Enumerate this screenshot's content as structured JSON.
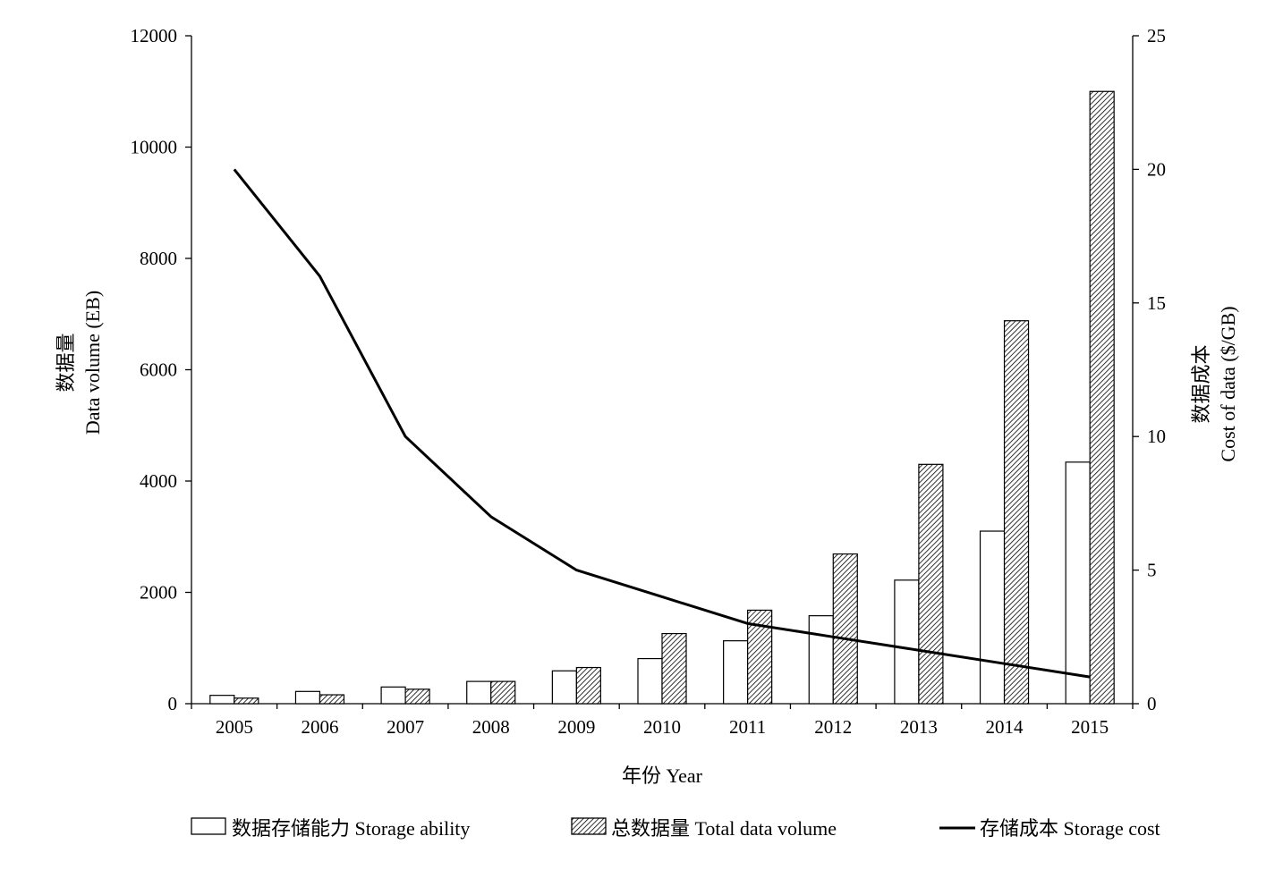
{
  "chart_data": {
    "type": "bar",
    "categories": [
      "2005",
      "2006",
      "2007",
      "2008",
      "2009",
      "2010",
      "2011",
      "2012",
      "2013",
      "2014",
      "2015"
    ],
    "series": [
      {
        "name": "数据存储能力 Storage ability",
        "type": "bar",
        "axis": "left",
        "fill": "#ffffff",
        "values": [
          150,
          220,
          300,
          400,
          590,
          810,
          1130,
          1580,
          2220,
          3100,
          4340
        ]
      },
      {
        "name": "总数据量 Total data volume",
        "type": "bar",
        "axis": "left",
        "fill": "hatched",
        "values": [
          100,
          160,
          260,
          400,
          650,
          1260,
          1680,
          2690,
          4300,
          6880,
          11000
        ]
      },
      {
        "name": "存储成本 Storage cost",
        "type": "line",
        "axis": "right",
        "color": "#000000",
        "values": [
          20,
          16,
          10,
          7,
          5,
          4,
          3,
          2.5,
          2,
          1.5,
          1
        ]
      }
    ],
    "xlabel": "年份  Year",
    "ylabel": [
      "数据量",
      "Data volume (EB)"
    ],
    "y2label": [
      "数据成本",
      "Cost of data ($/GB)"
    ],
    "ylim": [
      0,
      12000
    ],
    "y2lim": [
      0,
      25
    ],
    "yticks": [
      0,
      2000,
      4000,
      6000,
      8000,
      10000,
      12000
    ],
    "y2ticks": [
      0,
      5,
      10,
      15,
      20,
      25
    ],
    "grid": false,
    "legend_position": "bottom"
  }
}
